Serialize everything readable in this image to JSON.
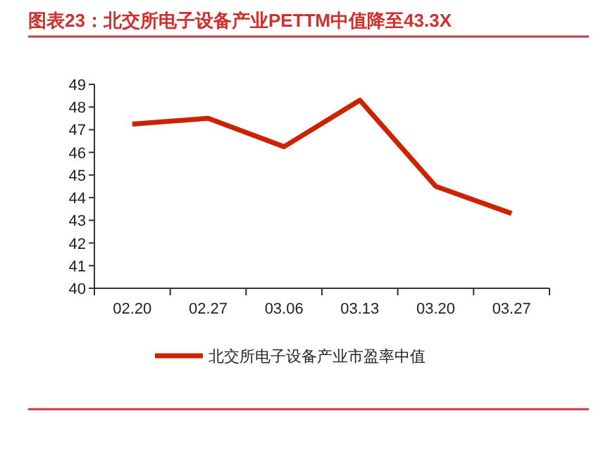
{
  "chart_data": {
    "type": "line",
    "title": "图表23：北交所电子设备产业PETTM中值降至43.3X",
    "categories": [
      "02.20",
      "02.27",
      "03.06",
      "03.13",
      "03.20",
      "03.27"
    ],
    "series": [
      {
        "name": "北交所电子设备产业市盈率中值",
        "color": "#cc2200",
        "values": [
          47.25,
          47.5,
          46.25,
          48.3,
          44.5,
          43.3
        ]
      }
    ],
    "ylim": [
      40,
      49
    ],
    "yticks": [
      40,
      41,
      42,
      43,
      44,
      45,
      46,
      47,
      48,
      49
    ],
    "legend": "bottom",
    "grid": false,
    "marker": "none",
    "line_style": "solid"
  }
}
